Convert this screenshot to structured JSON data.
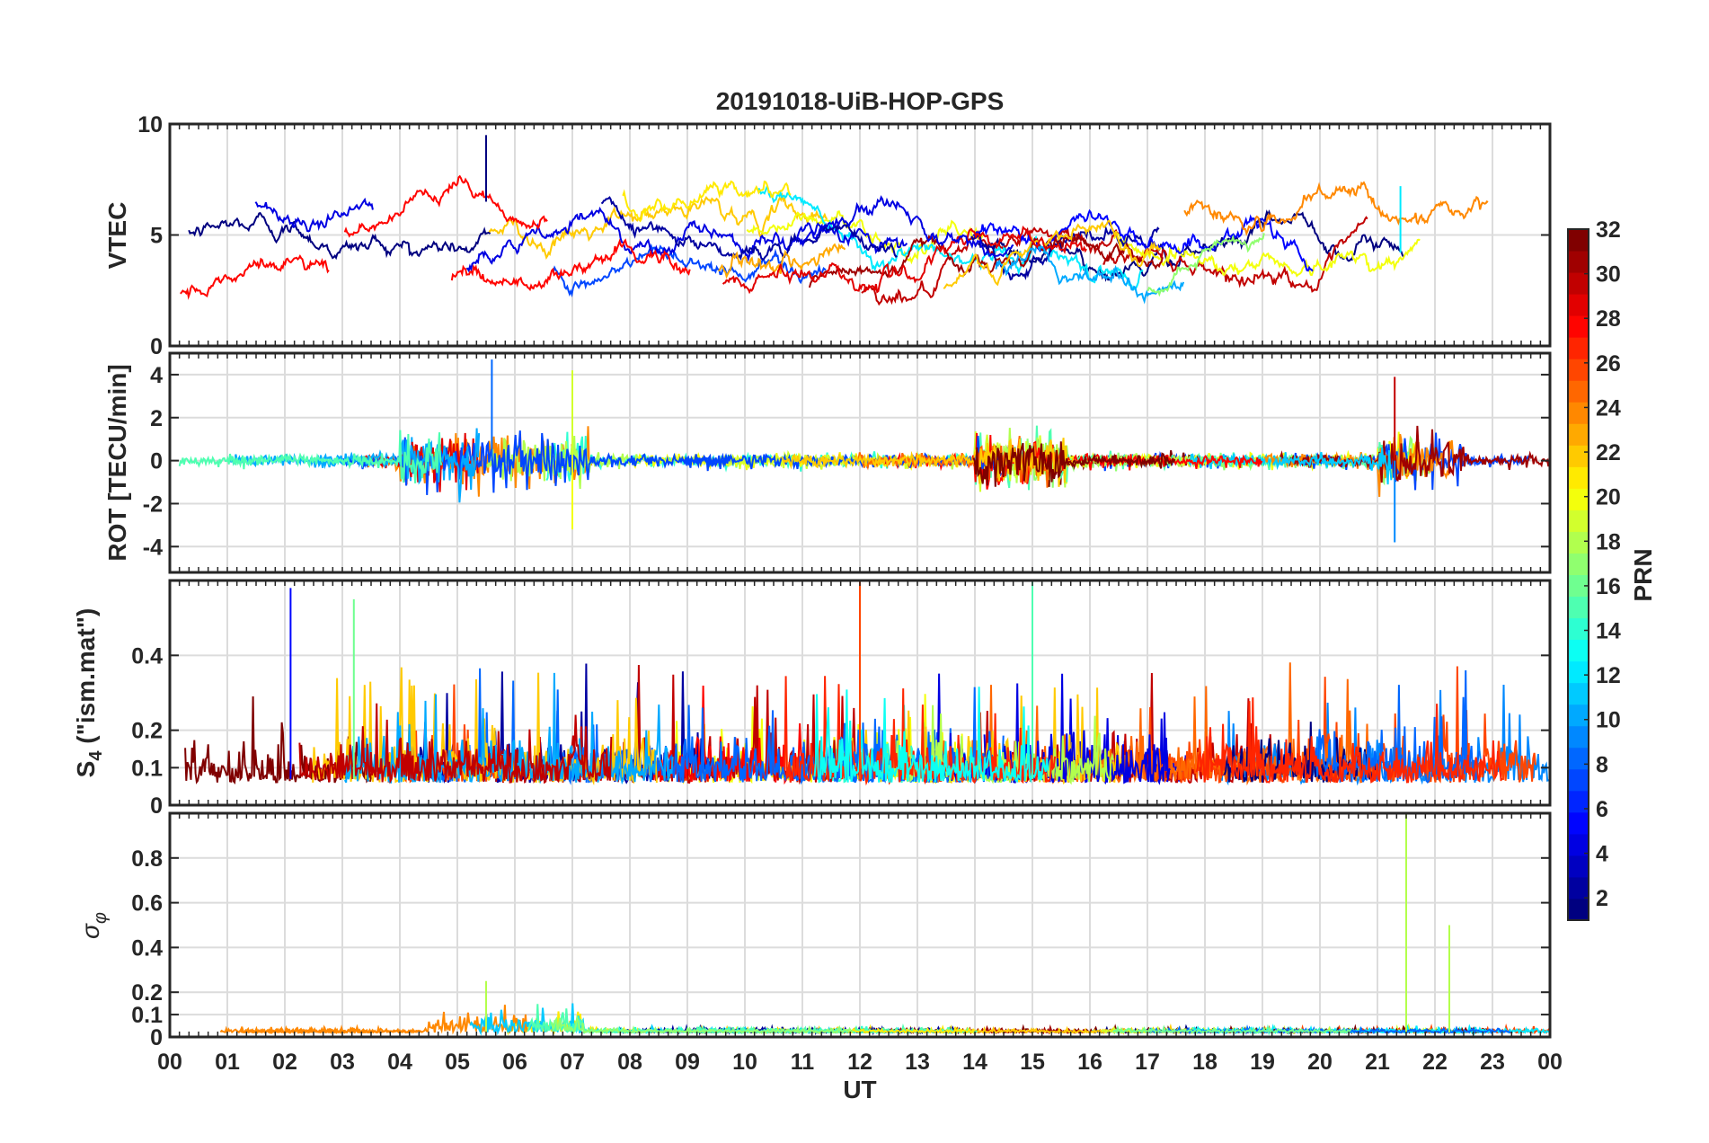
{
  "chart_data": {
    "title": "20191018-UiB-HOP-GPS",
    "type": "line",
    "xlabel": "UT",
    "x_ticks": [
      "00",
      "01",
      "02",
      "03",
      "04",
      "05",
      "06",
      "07",
      "08",
      "09",
      "10",
      "11",
      "12",
      "13",
      "14",
      "15",
      "16",
      "17",
      "18",
      "19",
      "20",
      "21",
      "22",
      "23",
      "00"
    ],
    "xlim": [
      0,
      24
    ],
    "grid": true,
    "colorbar": {
      "label": "PRN",
      "range": [
        1,
        32
      ],
      "ticks": [
        2,
        4,
        6,
        8,
        10,
        12,
        14,
        16,
        18,
        20,
        22,
        24,
        26,
        28,
        30,
        32
      ],
      "colormap": "jet"
    },
    "panels": [
      {
        "ylabel": "VTEC",
        "ylim": [
          0,
          10
        ],
        "y_ticks": [
          0,
          5,
          10
        ],
        "features": [
          {
            "x_hour": 5.5,
            "y": 9.5,
            "note": "peak"
          },
          {
            "x_hour": 21.4,
            "y": 7.2,
            "note": "spike"
          }
        ],
        "baseline_range": [
          1,
          8.5
        ]
      },
      {
        "ylabel": "ROT [TECU/min]",
        "ylim": [
          -5.2,
          5
        ],
        "y_ticks": [
          -4,
          -2,
          0,
          2,
          4
        ],
        "features": [
          {
            "x_hour": 5.6,
            "y": 4.7
          },
          {
            "x_hour": 7.0,
            "y": 4.2
          },
          {
            "x_hour": 21.3,
            "y": 3.9
          },
          {
            "x_hour": 21.3,
            "y": -3.8
          },
          {
            "x_hour": 7.0,
            "y": -3.2
          }
        ]
      },
      {
        "ylabel_main": "S",
        "ylabel_sub": "4",
        "ylabel_rest": " (\"ism.mat\")",
        "ylim": [
          0,
          0.6
        ],
        "y_ticks": [
          0,
          0.1,
          0.2,
          0.4
        ],
        "features": [
          {
            "x_hour": 15.0,
            "y": 0.6
          },
          {
            "x_hour": 12.0,
            "y": 0.6
          },
          {
            "x_hour": 2.1,
            "y": 0.58
          },
          {
            "x_hour": 3.2,
            "y": 0.55
          }
        ],
        "baseline": 0.07
      },
      {
        "ylabel_symbol": "σ",
        "ylabel_sub": "φ",
        "ylim": [
          0,
          1
        ],
        "y_ticks": [
          0,
          0.1,
          0.2,
          0.4,
          0.6,
          0.8
        ],
        "features": [
          {
            "x_hour": 21.5,
            "y": 1.0
          },
          {
            "x_hour": 22.25,
            "y": 0.5
          },
          {
            "x_hour": 5.5,
            "y": 0.25
          }
        ],
        "baseline": 0.02
      }
    ]
  }
}
